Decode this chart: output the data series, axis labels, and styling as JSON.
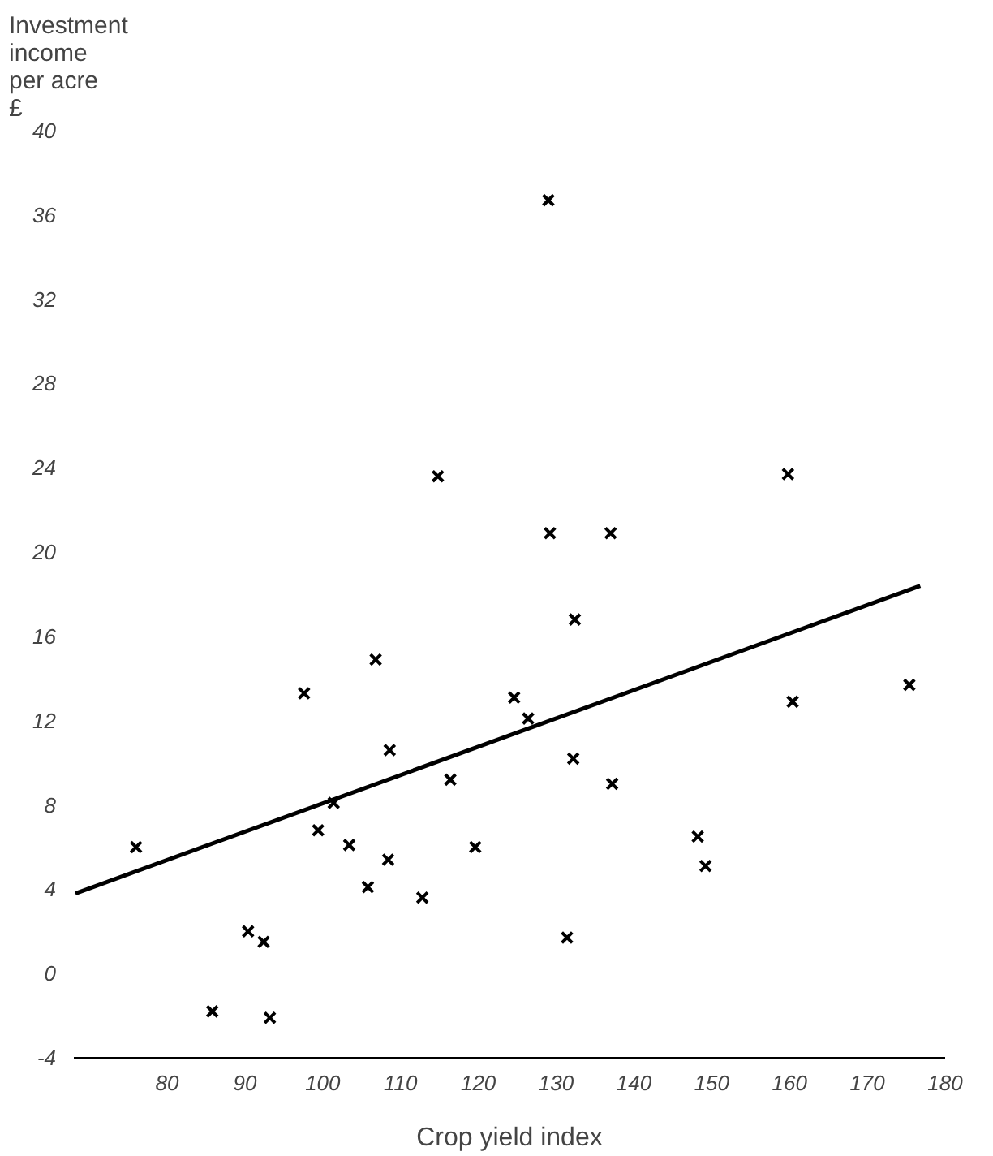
{
  "chart_data": {
    "type": "scatter",
    "xlabel": "Crop yield index",
    "ylabel": "Investment\nincome\nper acre\n£",
    "x": [
      76,
      97.6,
      106.8,
      108.6,
      116.4,
      101.4,
      99.4,
      103.4,
      108.4,
      105.8,
      112.8,
      119.6,
      90.4,
      92.4,
      85.8,
      93.2,
      124.6,
      129.2,
      137,
      132.4,
      126.4,
      132.2,
      137.2,
      148.2,
      149.2,
      131.4,
      160.4,
      175.4,
      129,
      159.8,
      114.8
    ],
    "series": [
      {
        "color": "#000000",
        "marker": "cross",
        "values": [
          6,
          13.3,
          14.9,
          10.6,
          9.2,
          8.1,
          6.8,
          6.1,
          5.4,
          4.1,
          3.6,
          6,
          2,
          1.5,
          -1.8,
          -2.1,
          13.1,
          20.9,
          20.9,
          16.8,
          12.1,
          10.2,
          9,
          6.5,
          5.1,
          1.7,
          12.9,
          13.7,
          36.7,
          23.7,
          23.6
        ]
      },
      {
        "type": "line",
        "color": "#000000",
        "x": [
          68.2,
          176.8
        ],
        "values": [
          3.8,
          18.4
        ]
      }
    ],
    "xlim": [
      68,
      180
    ],
    "ylim": [
      -4,
      40
    ],
    "xticks": [
      80,
      90,
      100,
      110,
      120,
      130,
      140,
      150,
      160,
      170,
      180
    ],
    "yticks": [
      -4,
      0,
      4,
      8,
      12,
      16,
      20,
      24,
      28,
      32,
      36,
      40
    ],
    "grid": false
  }
}
